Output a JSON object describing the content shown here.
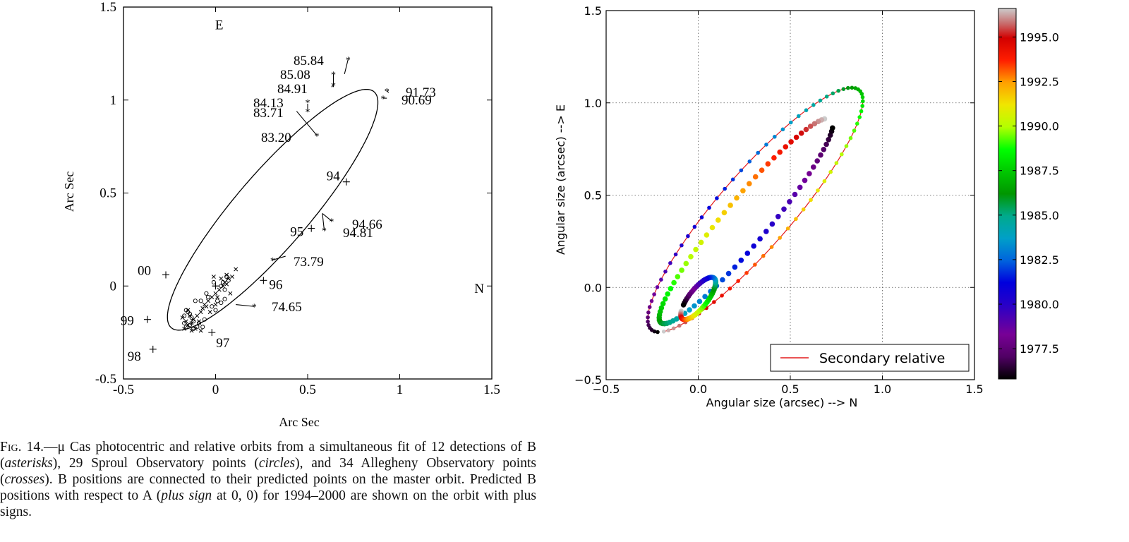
{
  "chart_data": [
    {
      "type": "scatter",
      "title": "",
      "xlabel": "Arc Sec",
      "ylabel": "Arc Sec",
      "xlim": [
        -0.5,
        1.5
      ],
      "ylim": [
        -0.5,
        1.5
      ],
      "xticks": [
        "-0.5",
        "0",
        "0.5",
        "1",
        "1.5"
      ],
      "yticks": [
        "-0.5",
        "0",
        "0.5",
        "1",
        "1.5"
      ],
      "direction_labels": {
        "east": "E",
        "north": "N"
      },
      "grid": false,
      "orbit": {
        "center": [
          0.31,
          0.41
        ],
        "semi_major": 0.84,
        "semi_minor": 0.2,
        "angle_deg": 49
      },
      "b_detections": [
        {
          "label": "85.84",
          "obs": [
            0.72,
            1.22
          ],
          "pred": [
            0.7,
            1.14
          ]
        },
        {
          "label": "85.08",
          "obs": [
            0.64,
            1.14
          ],
          "pred": [
            0.64,
            1.07
          ]
        },
        {
          "label": "84.91",
          "obs": [
            0.64,
            1.08
          ],
          "pred": [
            0.63,
            1.07
          ]
        },
        {
          "label": "84.13",
          "obs": [
            0.5,
            0.99
          ],
          "pred": [
            0.5,
            0.99
          ]
        },
        {
          "label": "83.71",
          "obs": [
            0.5,
            0.94
          ],
          "pred": [
            0.5,
            0.98
          ]
        },
        {
          "label": "83.20",
          "obs": [
            0.55,
            0.81
          ],
          "pred": [
            0.44,
            0.94
          ]
        },
        {
          "label": "91.73",
          "obs": [
            0.93,
            1.05
          ],
          "pred": [
            0.94,
            1.04
          ]
        },
        {
          "label": "90.69",
          "obs": [
            0.91,
            1.01
          ],
          "pred": [
            0.93,
            1.01
          ]
        },
        {
          "label": "94.66",
          "obs": [
            0.63,
            0.35
          ],
          "pred": [
            0.58,
            0.39
          ]
        },
        {
          "label": "94.81",
          "obs": [
            0.59,
            0.3
          ],
          "pred": [
            0.58,
            0.39
          ]
        },
        {
          "label": "73.79",
          "obs": [
            0.31,
            0.14
          ],
          "pred": [
            0.38,
            0.16
          ]
        },
        {
          "label": "74.65",
          "obs": [
            0.21,
            -0.11
          ],
          "pred": [
            0.11,
            -0.1
          ]
        }
      ],
      "orbit_year_marks": [
        {
          "label": "94",
          "x": 0.71,
          "y": 0.56
        },
        {
          "label": "95",
          "x": 0.52,
          "y": 0.31
        },
        {
          "label": "96",
          "x": 0.26,
          "y": 0.03
        },
        {
          "label": "97",
          "x": -0.02,
          "y": -0.25
        },
        {
          "label": "98",
          "x": -0.34,
          "y": -0.34
        },
        {
          "label": "99",
          "x": -0.37,
          "y": -0.18
        },
        {
          "label": "00",
          "x": -0.27,
          "y": 0.06
        }
      ],
      "sproul_circles": [
        [
          -0.16,
          -0.13
        ],
        [
          -0.15,
          -0.14
        ],
        [
          -0.14,
          -0.15
        ],
        [
          -0.17,
          -0.16
        ],
        [
          -0.13,
          -0.17
        ],
        [
          -0.11,
          -0.08
        ],
        [
          -0.08,
          -0.08
        ],
        [
          -0.04,
          -0.06
        ],
        [
          -0.02,
          -0.11
        ],
        [
          0.01,
          -0.08
        ],
        [
          0.03,
          -0.09
        ],
        [
          0.05,
          -0.07
        ],
        [
          0.04,
          0.02
        ],
        [
          0.06,
          0.05
        ],
        [
          -0.01,
          0.02
        ],
        [
          0.03,
          0.0
        ],
        [
          0.05,
          -0.02
        ],
        [
          -0.12,
          -0.19
        ],
        [
          -0.09,
          -0.2
        ],
        [
          -0.07,
          -0.22
        ],
        [
          -0.16,
          -0.22
        ],
        [
          -0.17,
          -0.2
        ],
        [
          -0.12,
          -0.23
        ],
        [
          -0.05,
          -0.04
        ],
        [
          0.07,
          0.03
        ],
        [
          -0.14,
          -0.21
        ],
        [
          -0.1,
          -0.22
        ],
        [
          0.0,
          -0.13
        ],
        [
          -0.06,
          -0.18
        ]
      ],
      "allegheny_crosses": [
        [
          -0.18,
          -0.17
        ],
        [
          -0.16,
          -0.19
        ],
        [
          -0.15,
          -0.21
        ],
        [
          -0.13,
          -0.2
        ],
        [
          -0.12,
          -0.18
        ],
        [
          -0.1,
          -0.16
        ],
        [
          -0.08,
          -0.14
        ],
        [
          -0.07,
          -0.12
        ],
        [
          -0.06,
          -0.1
        ],
        [
          -0.04,
          -0.08
        ],
        [
          -0.02,
          -0.06
        ],
        [
          0.0,
          -0.04
        ],
        [
          0.02,
          -0.02
        ],
        [
          0.04,
          0.0
        ],
        [
          0.05,
          0.02
        ],
        [
          0.07,
          0.04
        ],
        [
          0.11,
          0.09
        ],
        [
          0.08,
          -0.04
        ],
        [
          0.06,
          0.01
        ],
        [
          0.0,
          -0.1
        ],
        [
          -0.03,
          -0.14
        ],
        [
          -0.09,
          -0.19
        ],
        [
          -0.11,
          -0.23
        ],
        [
          -0.17,
          -0.23
        ],
        [
          -0.15,
          -0.13
        ],
        [
          -0.05,
          -0.11
        ],
        [
          -0.01,
          0.05
        ],
        [
          0.09,
          0.05
        ],
        [
          0.03,
          0.04
        ],
        [
          -0.14,
          -0.16
        ],
        [
          -0.08,
          -0.24
        ],
        [
          -0.13,
          -0.24
        ],
        [
          0.01,
          -0.06
        ],
        [
          0.06,
          0.06
        ]
      ],
      "center_plus": [
        0,
        0
      ]
    },
    {
      "type": "scatter",
      "title": "",
      "xlabel": "Angular size (arcsec) --> N",
      "ylabel": "Angular size (arcsec) --> E",
      "xlim": [
        -0.5,
        1.5
      ],
      "ylim": [
        -0.5,
        1.5
      ],
      "xticks": [
        "−0.5",
        "0.0",
        "0.5",
        "1.0",
        "1.5"
      ],
      "yticks": [
        "−0.5",
        "0.0",
        "0.5",
        "1.0",
        "1.5"
      ],
      "grid": true,
      "legend": {
        "label": "Secondary relative",
        "location": "lower-right",
        "color": "#e41a1c"
      },
      "colorbar": {
        "min": 1975.8,
        "max": 1996.6,
        "ticks": [
          "1977.5",
          "1980.0",
          "1982.5",
          "1985.0",
          "1987.5",
          "1990.0",
          "1992.5",
          "1995.0"
        ],
        "colormap": "nipy_spectral"
      },
      "series": [
        {
          "role": "secondary relative orbit",
          "t_start": 1975.8,
          "t_end": 1996.6,
          "start_point": [
            0.13,
            -0.09
          ],
          "end_point": [
            -0.2,
            -0.32
          ],
          "line_color": "#e41a1c"
        },
        {
          "role": "orbit of B",
          "t_start": 1975.8,
          "t_end": 1996.6,
          "start_point": [
            0.77,
            0.91
          ],
          "end_point": [
            -0.18,
            -0.27
          ]
        },
        {
          "role": "orbit of A",
          "t_start": 1975.8,
          "t_end": 1996.6,
          "start_point": [
            0.06,
            0.06
          ],
          "end_point": [
            -0.04,
            -0.04
          ]
        }
      ]
    }
  ],
  "caption": {
    "fig_label": "Fig. 14.",
    "text_parts": [
      {
        "text": "—μ Cas photocentric and relative orbits from a simultaneous fit of 12 detections of B (",
        "italic": false
      },
      {
        "text": "asterisks",
        "italic": true
      },
      {
        "text": "), 29 Sproul Observatory points (",
        "italic": false
      },
      {
        "text": "circles",
        "italic": true
      },
      {
        "text": "), and 34 Allegheny Observatory points (",
        "italic": false
      },
      {
        "text": "crosses",
        "italic": true
      },
      {
        "text": "). B positions are connected to their predicted points on the master orbit. Predicted B positions with respect to A (",
        "italic": false
      },
      {
        "text": "plus sign",
        "italic": true
      },
      {
        "text": " at 0, 0) for 1994–2000 are shown on the orbit with plus signs.",
        "italic": false
      }
    ]
  }
}
